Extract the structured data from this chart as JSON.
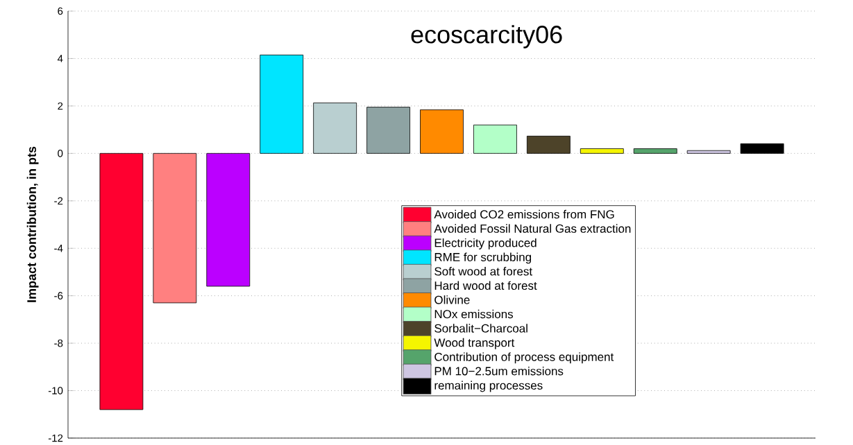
{
  "chart_data": {
    "type": "bar",
    "title": "ecoscarcity06",
    "ylabel": "Impact contribution, in pts",
    "categories": [
      null,
      null,
      null,
      null,
      null,
      null,
      null,
      null,
      null,
      null,
      null,
      null,
      null
    ],
    "series": [
      {
        "name": "Avoided CO2 emissions from FNG",
        "color": "#ff0030",
        "values": [
          -10.8,
          null,
          null,
          null,
          null,
          null,
          null,
          null,
          null,
          null,
          null,
          null,
          null
        ]
      },
      {
        "name": "Avoided Fossil Natural Gas extraction",
        "color": "#ff8080",
        "values": [
          null,
          -6.3,
          null,
          null,
          null,
          null,
          null,
          null,
          null,
          null,
          null,
          null,
          null
        ]
      },
      {
        "name": "Electricity produced",
        "color": "#bb00ff",
        "values": [
          null,
          null,
          -5.6,
          null,
          null,
          null,
          null,
          null,
          null,
          null,
          null,
          null,
          null
        ]
      },
      {
        "name": "RME for scrubbing",
        "color": "#00e5ff",
        "values": [
          null,
          null,
          null,
          4.15,
          null,
          null,
          null,
          null,
          null,
          null,
          null,
          null,
          null
        ]
      },
      {
        "name": "Soft wood at forest",
        "color": "#b9cfd0",
        "values": [
          null,
          null,
          null,
          null,
          2.13,
          null,
          null,
          null,
          null,
          null,
          null,
          null,
          null
        ]
      },
      {
        "name": "Hard wood at forest",
        "color": "#8ea3a3",
        "values": [
          null,
          null,
          null,
          null,
          null,
          1.95,
          null,
          null,
          null,
          null,
          null,
          null,
          null
        ]
      },
      {
        "name": "Olivine",
        "color": "#ff8a00",
        "values": [
          null,
          null,
          null,
          null,
          null,
          null,
          1.84,
          null,
          null,
          null,
          null,
          null,
          null
        ]
      },
      {
        "name": "NOx emissions",
        "color": "#b3ffc8",
        "values": [
          null,
          null,
          null,
          null,
          null,
          null,
          null,
          1.2,
          null,
          null,
          null,
          null,
          null
        ]
      },
      {
        "name": "Sorbalit−Charcoal",
        "color": "#4d4329",
        "values": [
          null,
          null,
          null,
          null,
          null,
          null,
          null,
          null,
          0.73,
          null,
          null,
          null,
          null
        ]
      },
      {
        "name": "Wood transport",
        "color": "#f5f500",
        "values": [
          null,
          null,
          null,
          null,
          null,
          null,
          null,
          null,
          null,
          0.2,
          null,
          null,
          null
        ]
      },
      {
        "name": "Contribution of process equipment",
        "color": "#55a46b",
        "values": [
          null,
          null,
          null,
          null,
          null,
          null,
          null,
          null,
          null,
          null,
          0.2,
          null,
          null
        ]
      },
      {
        "name": "PM 10−2.5um emissions",
        "color": "#cec6e2",
        "values": [
          null,
          null,
          null,
          null,
          null,
          null,
          null,
          null,
          null,
          null,
          null,
          0.12,
          null
        ]
      },
      {
        "name": "remaining processes",
        "color": "#000000",
        "values": [
          null,
          null,
          null,
          null,
          null,
          null,
          null,
          null,
          null,
          null,
          null,
          null,
          0.41
        ]
      }
    ],
    "ylim": [
      -12,
      6
    ],
    "yticks": [
      -12,
      -10,
      -8,
      -6,
      -4,
      -2,
      0,
      2,
      4,
      6
    ],
    "grid": "y",
    "legend": "bottom right"
  }
}
